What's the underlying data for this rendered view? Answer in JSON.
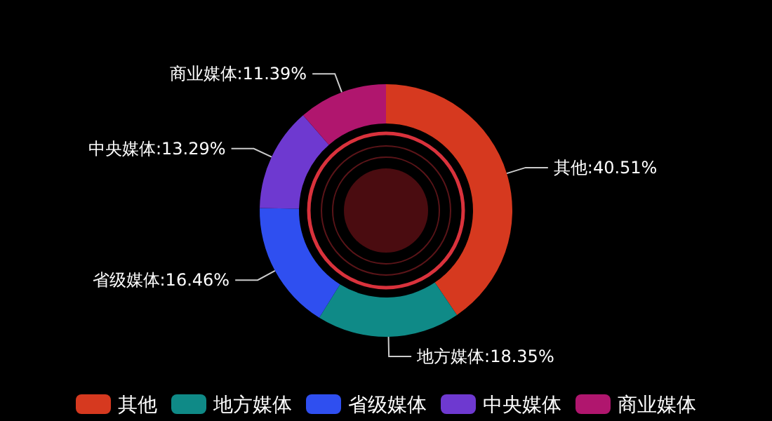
{
  "chart_data": {
    "type": "donut",
    "categories": [
      "其他",
      "地方媒体",
      "省级媒体",
      "中央媒体",
      "商业媒体"
    ],
    "values": [
      40.51,
      18.35,
      16.46,
      13.29,
      11.39
    ],
    "colors": [
      "#d6391f",
      "#0f8a87",
      "#2f4ff0",
      "#6e39d0",
      "#b0166e"
    ],
    "value_labels": [
      "其他:40.51%",
      "地方媒体:18.35%",
      "省级媒体:16.46%",
      "中央媒体:13.29%",
      "商业媒体:11.39%"
    ],
    "legend": "bottom"
  }
}
